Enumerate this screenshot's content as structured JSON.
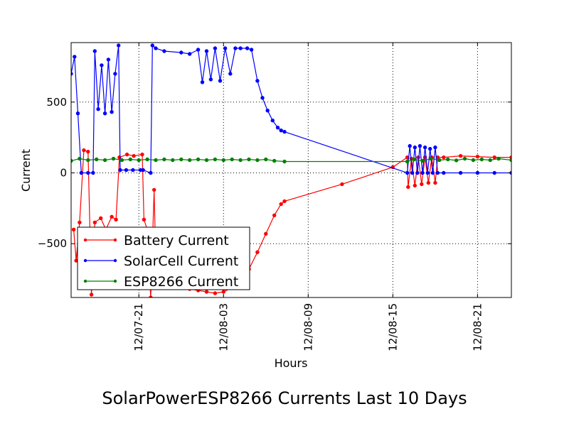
{
  "chart_data": {
    "type": "line",
    "title": "SolarPowerESP8266 Currents Last 10 Days",
    "xlabel": "Hours",
    "ylabel": "Current",
    "x_tick_labels": [
      "12/07-21",
      "12/08-03",
      "12/08-09",
      "12/08-15",
      "12/08-21"
    ],
    "y_tick_labels": [
      "500",
      "0",
      "−500"
    ],
    "y_ticks": [
      500,
      0,
      -500
    ],
    "ylim": [
      -880,
      920
    ],
    "grid": true,
    "legend_position": "lower-left",
    "series": [
      {
        "name": "Battery Current",
        "color": "#ff0000",
        "points": [
          [
            12.3,
            -400
          ],
          [
            12.6,
            -620
          ],
          [
            13.0,
            -350
          ],
          [
            13.5,
            160
          ],
          [
            14.0,
            150
          ],
          [
            14.4,
            -860
          ],
          [
            14.8,
            -350
          ],
          [
            15.5,
            -320
          ],
          [
            16.1,
            -400
          ],
          [
            16.8,
            -310
          ],
          [
            17.3,
            -330
          ],
          [
            17.7,
            110
          ],
          [
            18.6,
            130
          ],
          [
            19.4,
            120
          ],
          [
            20.4,
            130
          ],
          [
            20.6,
            -330
          ],
          [
            21.0,
            -400
          ],
          [
            21.4,
            -880
          ],
          [
            21.8,
            -120
          ],
          [
            22.0,
            -630
          ],
          [
            22.3,
            -560
          ],
          [
            23.0,
            -620
          ],
          [
            24.0,
            -700
          ],
          [
            25.0,
            -780
          ],
          [
            26.0,
            -820
          ],
          [
            27.0,
            -830
          ],
          [
            28.0,
            -840
          ],
          [
            29.0,
            -850
          ],
          [
            30.0,
            -840
          ],
          [
            31.0,
            -810
          ],
          [
            32.0,
            -800
          ],
          [
            33.0,
            -680
          ],
          [
            34.0,
            -560
          ],
          [
            35.0,
            -430
          ],
          [
            36.0,
            -300
          ],
          [
            36.8,
            -220
          ],
          [
            37.2,
            -200
          ],
          [
            44.0,
            -80
          ],
          [
            50.0,
            40
          ],
          [
            51.7,
            110
          ],
          [
            51.8,
            -100
          ],
          [
            52.2,
            100
          ],
          [
            52.6,
            -90
          ],
          [
            53.0,
            110
          ],
          [
            53.4,
            -80
          ],
          [
            53.8,
            110
          ],
          [
            54.2,
            -70
          ],
          [
            54.6,
            110
          ],
          [
            55.0,
            -70
          ],
          [
            55.3,
            110
          ],
          [
            56.0,
            110
          ],
          [
            58.0,
            120
          ],
          [
            60.0,
            115
          ],
          [
            62.0,
            110
          ],
          [
            64.0,
            110
          ]
        ]
      },
      {
        "name": "SolarCell Current",
        "color": "#0000ff",
        "points": [
          [
            12.0,
            700
          ],
          [
            12.4,
            820
          ],
          [
            12.8,
            420
          ],
          [
            13.2,
            0
          ],
          [
            14.0,
            0
          ],
          [
            14.6,
            0
          ],
          [
            14.8,
            860
          ],
          [
            15.2,
            450
          ],
          [
            15.6,
            760
          ],
          [
            16.0,
            420
          ],
          [
            16.4,
            800
          ],
          [
            16.8,
            430
          ],
          [
            17.2,
            700
          ],
          [
            17.6,
            900
          ],
          [
            17.8,
            20
          ],
          [
            18.5,
            20
          ],
          [
            19.3,
            20
          ],
          [
            20.2,
            20
          ],
          [
            20.5,
            20
          ],
          [
            21.4,
            0
          ],
          [
            21.6,
            900
          ],
          [
            22.0,
            880
          ],
          [
            23.0,
            860
          ],
          [
            25.0,
            850
          ],
          [
            26.0,
            840
          ],
          [
            27.0,
            870
          ],
          [
            27.5,
            640
          ],
          [
            28.0,
            860
          ],
          [
            28.5,
            660
          ],
          [
            29.0,
            880
          ],
          [
            29.6,
            650
          ],
          [
            30.2,
            880
          ],
          [
            30.8,
            700
          ],
          [
            31.4,
            880
          ],
          [
            32.0,
            880
          ],
          [
            32.8,
            880
          ],
          [
            33.3,
            870
          ],
          [
            34.0,
            650
          ],
          [
            34.6,
            530
          ],
          [
            35.2,
            440
          ],
          [
            35.8,
            370
          ],
          [
            36.4,
            320
          ],
          [
            36.8,
            300
          ],
          [
            37.2,
            290
          ],
          [
            51.7,
            0
          ],
          [
            52.0,
            190
          ],
          [
            52.3,
            0
          ],
          [
            52.6,
            180
          ],
          [
            52.9,
            0
          ],
          [
            53.2,
            190
          ],
          [
            53.5,
            0
          ],
          [
            53.8,
            180
          ],
          [
            54.1,
            0
          ],
          [
            54.4,
            170
          ],
          [
            54.7,
            0
          ],
          [
            55.0,
            180
          ],
          [
            55.3,
            0
          ],
          [
            56.0,
            0
          ],
          [
            58.0,
            0
          ],
          [
            60.0,
            0
          ],
          [
            62.0,
            0
          ],
          [
            64.0,
            0
          ]
        ]
      },
      {
        "name": "ESP8266 Current",
        "color": "#008000",
        "points": [
          [
            12.0,
            85
          ],
          [
            13.0,
            100
          ],
          [
            14.0,
            90
          ],
          [
            15.0,
            95
          ],
          [
            16.0,
            90
          ],
          [
            17.0,
            100
          ],
          [
            18.0,
            90
          ],
          [
            19.0,
            95
          ],
          [
            20.0,
            90
          ],
          [
            21.0,
            95
          ],
          [
            22.0,
            90
          ],
          [
            23.0,
            95
          ],
          [
            24.0,
            90
          ],
          [
            25.0,
            95
          ],
          [
            26.0,
            90
          ],
          [
            27.0,
            95
          ],
          [
            28.0,
            90
          ],
          [
            29.0,
            95
          ],
          [
            30.0,
            90
          ],
          [
            31.0,
            95
          ],
          [
            32.0,
            90
          ],
          [
            33.0,
            95
          ],
          [
            34.0,
            90
          ],
          [
            35.0,
            95
          ],
          [
            36.0,
            85
          ],
          [
            37.2,
            80
          ],
          [
            51.7,
            80
          ],
          [
            52.5,
            95
          ],
          [
            53.5,
            85
          ],
          [
            54.5,
            100
          ],
          [
            55.5,
            90
          ],
          [
            56.5,
            95
          ],
          [
            57.5,
            88
          ],
          [
            58.5,
            100
          ],
          [
            59.5,
            90
          ],
          [
            60.5,
            95
          ],
          [
            61.5,
            90
          ],
          [
            62.5,
            100
          ],
          [
            64.0,
            90
          ]
        ]
      }
    ]
  }
}
